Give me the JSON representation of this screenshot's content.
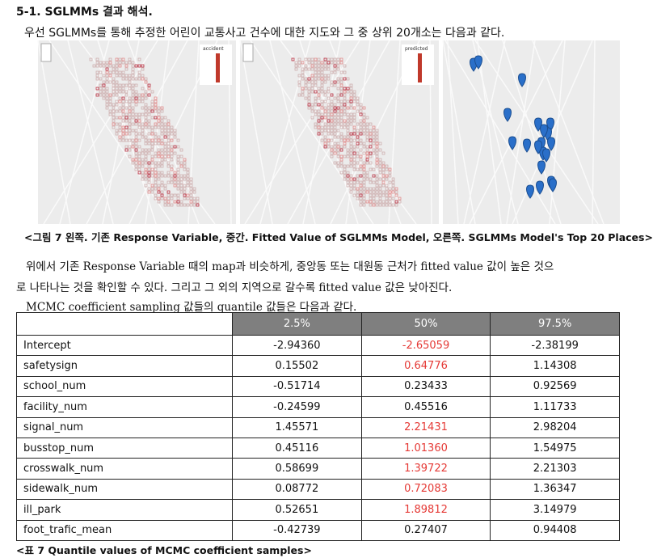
{
  "heading": "5-1. SGLMMs 결과 해석.",
  "intro": "우선 SGLMMs를 통해 추정한 어린이 교통사고 건수에 대한 지도와 그 중 상위 20개소는 다음과 같다.",
  "maps": {
    "legend_left": "accident",
    "legend_middle": "predicted"
  },
  "figure_caption": "<그림 7 왼쪽. 기존 Response Variable, 중간. Fitted Value of SGLMMs Model, 오른쪽. SGLMMs Model's Top 20 Places>",
  "paragraph": [
    "위에서 기존 Response Variable 때의 map과 비슷하게, 중앙동 또는 대원동 근처가 fitted value 값이 높은 것으",
    "로 나타나는 것을 확인할 수 있다. 그리고 그 외의 지역으로 갈수록 fitted value 값은 낮아진다."
  ],
  "table_intro": "MCMC coefficient sampling 값들의 quantile 값들은 다음과 같다.",
  "table": {
    "header": [
      "2.5%",
      "50%",
      "97.5%"
    ],
    "rows": [
      [
        "Intercept",
        "-2.94360",
        "-2.65059",
        "-2.38199"
      ],
      [
        "safetysign",
        "0.15502",
        "0.64776",
        "1.14308"
      ],
      [
        "school_num",
        "-0.51714",
        "0.23433",
        "0.92569"
      ],
      [
        "facility_num",
        "-0.24599",
        "0.45516",
        "1.11733"
      ],
      [
        "signal_num",
        "1.45571",
        "2.21431",
        "2.98204"
      ],
      [
        "busstop_num",
        "0.45116",
        "1.01360",
        "1.54975"
      ],
      [
        "crosswalk_num",
        "0.58699",
        "1.39722",
        "2.21303"
      ],
      [
        "sidewalk_num",
        "0.08772",
        "0.72083",
        "1.36347"
      ],
      [
        "ill_park",
        "0.52651",
        "1.89812",
        "3.14979"
      ],
      [
        "foot_trafic_mean",
        "-0.42739",
        "0.27407",
        "0.94408"
      ]
    ],
    "highlight": {
      "color": "#e53935",
      "column": 2,
      "rows": [
        0,
        1,
        4,
        5,
        6,
        7,
        8
      ]
    }
  },
  "table_caption": "<표 7 Quantile values of MCMC coefficient samples>"
}
